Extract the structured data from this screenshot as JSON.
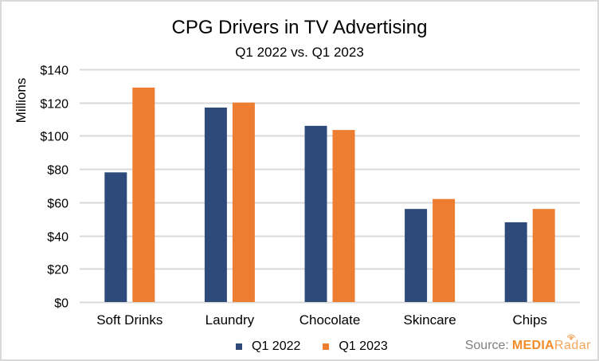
{
  "chart_data": {
    "type": "bar",
    "title": "CPG Drivers in TV Advertising",
    "subtitle": "Q1 2022 vs. Q1 2023",
    "xlabel": "",
    "ylabel": "Millions",
    "categories": [
      "Soft Drinks",
      "Laundry",
      "Chocolate",
      "Skincare",
      "Chips"
    ],
    "series": [
      {
        "name": "Q1 2022",
        "color": "#2e4a7a",
        "values": [
          78,
          117,
          106,
          56,
          48
        ]
      },
      {
        "name": "Q1 2023",
        "color": "#ed7d31",
        "values": [
          129,
          120,
          103.5,
          62,
          56
        ]
      }
    ],
    "ylim": [
      0,
      140
    ],
    "yticks": [
      0,
      20,
      40,
      60,
      80,
      100,
      120,
      140
    ],
    "ytick_labels": [
      "$0",
      "$20",
      "$40",
      "$60",
      "$80",
      "$100",
      "$120",
      "$140"
    ],
    "grid": true,
    "legend_position": "bottom"
  },
  "source": {
    "label": "Source:",
    "brand_part1": "MEDIA",
    "brand_part2": "Radar"
  },
  "colors": {
    "grid": "#d9d9d9",
    "border": "#d9d9d9"
  }
}
